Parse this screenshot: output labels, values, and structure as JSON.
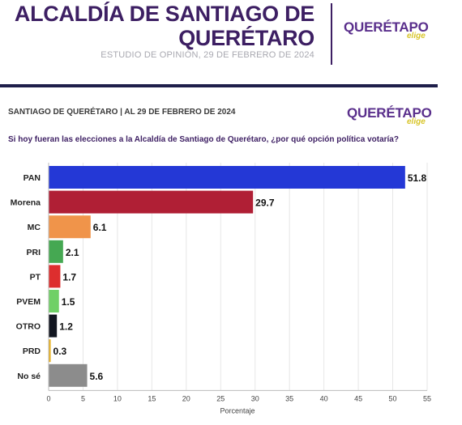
{
  "header": {
    "title_line1": "ALCALDÍA DE SANTIAGO DE",
    "title_line2": "QUERÉTARO",
    "subtitle": "ESTUDIO DE OPINIÓN, 29 DE FEBRERO DE 2024",
    "logo_text": "QUERÉTAPO",
    "logo_subtext": "elige"
  },
  "chart_header": {
    "heading": "SANTIAGO DE QUERÉTARO | AL 29 DE FEBRERO DE 2024",
    "question": "Si hoy fueran las elecciones a la Alcaldía de Santiago de Querétaro, ¿por qué opción política votaría?",
    "logo_text": "QUERÉTAPO",
    "logo_subtext": "elige"
  },
  "colors": {
    "title": "#3d1f63",
    "logo": "#5a2f8c",
    "logo_accent": "#d8c52a"
  },
  "chart_data": {
    "type": "bar",
    "orientation": "horizontal",
    "categories": [
      "PAN",
      "Morena",
      "MC",
      "PRI",
      "PT",
      "PVEM",
      "OTRO",
      "PRD",
      "No sé"
    ],
    "values": [
      51.8,
      29.7,
      6.1,
      2.1,
      1.7,
      1.5,
      1.2,
      0.3,
      5.6
    ],
    "bar_colors": [
      "#2438d6",
      "#b01f35",
      "#f0944a",
      "#45a852",
      "#dd2e2e",
      "#6fd066",
      "#121620",
      "#e8b020",
      "#8c8c8c"
    ],
    "xlabel": "Porcentaje",
    "xlim": [
      0,
      55
    ],
    "xticks": [
      0,
      5,
      10,
      15,
      20,
      25,
      30,
      35,
      40,
      45,
      50,
      55
    ],
    "grid": true
  }
}
